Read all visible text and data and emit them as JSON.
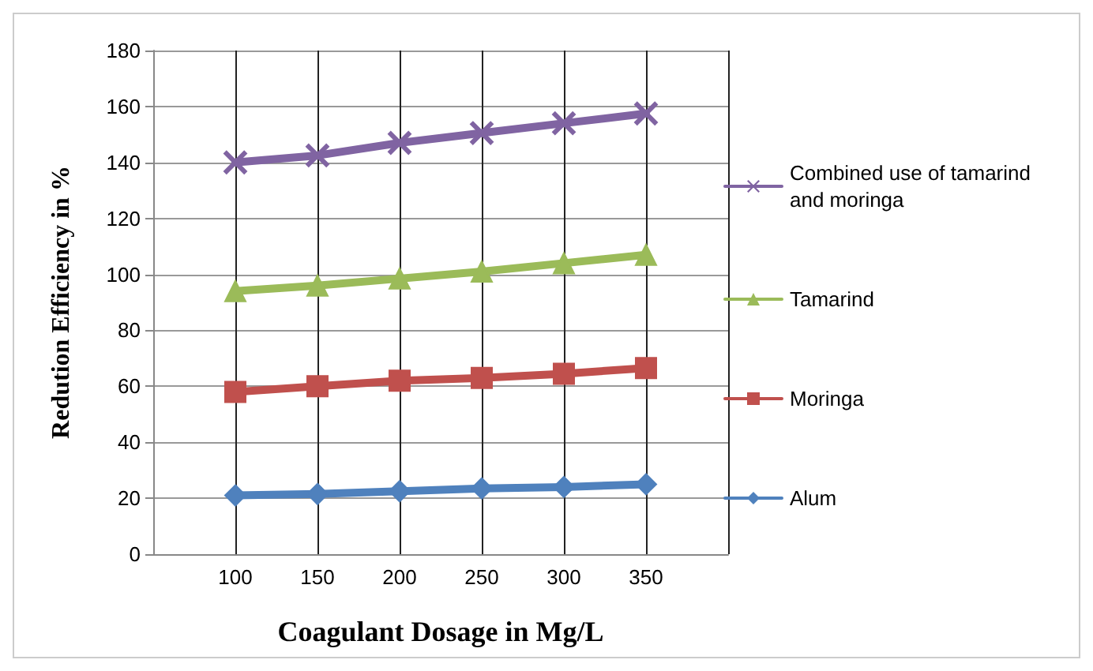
{
  "chart_data": {
    "type": "line",
    "xlabel": "Coagulant Dosage in Mg/L",
    "ylabel": "Redution Efficiency in %",
    "x": [
      100,
      150,
      200,
      250,
      300,
      350
    ],
    "xlim": [
      50,
      400
    ],
    "xticks": [
      100,
      150,
      200,
      250,
      300,
      350
    ],
    "ylim": [
      0,
      180
    ],
    "yticks": [
      0,
      20,
      40,
      60,
      80,
      100,
      120,
      140,
      160,
      180
    ],
    "grid": true,
    "legend": "right",
    "series": [
      {
        "name": "Combined use of tamarind and moringa",
        "color": "#8064a2",
        "marker": "cross",
        "values": [
          140,
          142.5,
          147,
          150.5,
          154,
          157.5
        ]
      },
      {
        "name": "Tamarind",
        "color": "#9bbb59",
        "marker": "triangle",
        "values": [
          94,
          96,
          98.5,
          101,
          104,
          107
        ]
      },
      {
        "name": "Moringa",
        "color": "#c0504d",
        "marker": "square",
        "values": [
          58,
          60,
          62,
          63,
          64.5,
          66.5
        ]
      },
      {
        "name": "Alum",
        "color": "#4f81bd",
        "marker": "diamond",
        "values": [
          21,
          21.5,
          22.5,
          23.5,
          24,
          25
        ]
      }
    ]
  }
}
